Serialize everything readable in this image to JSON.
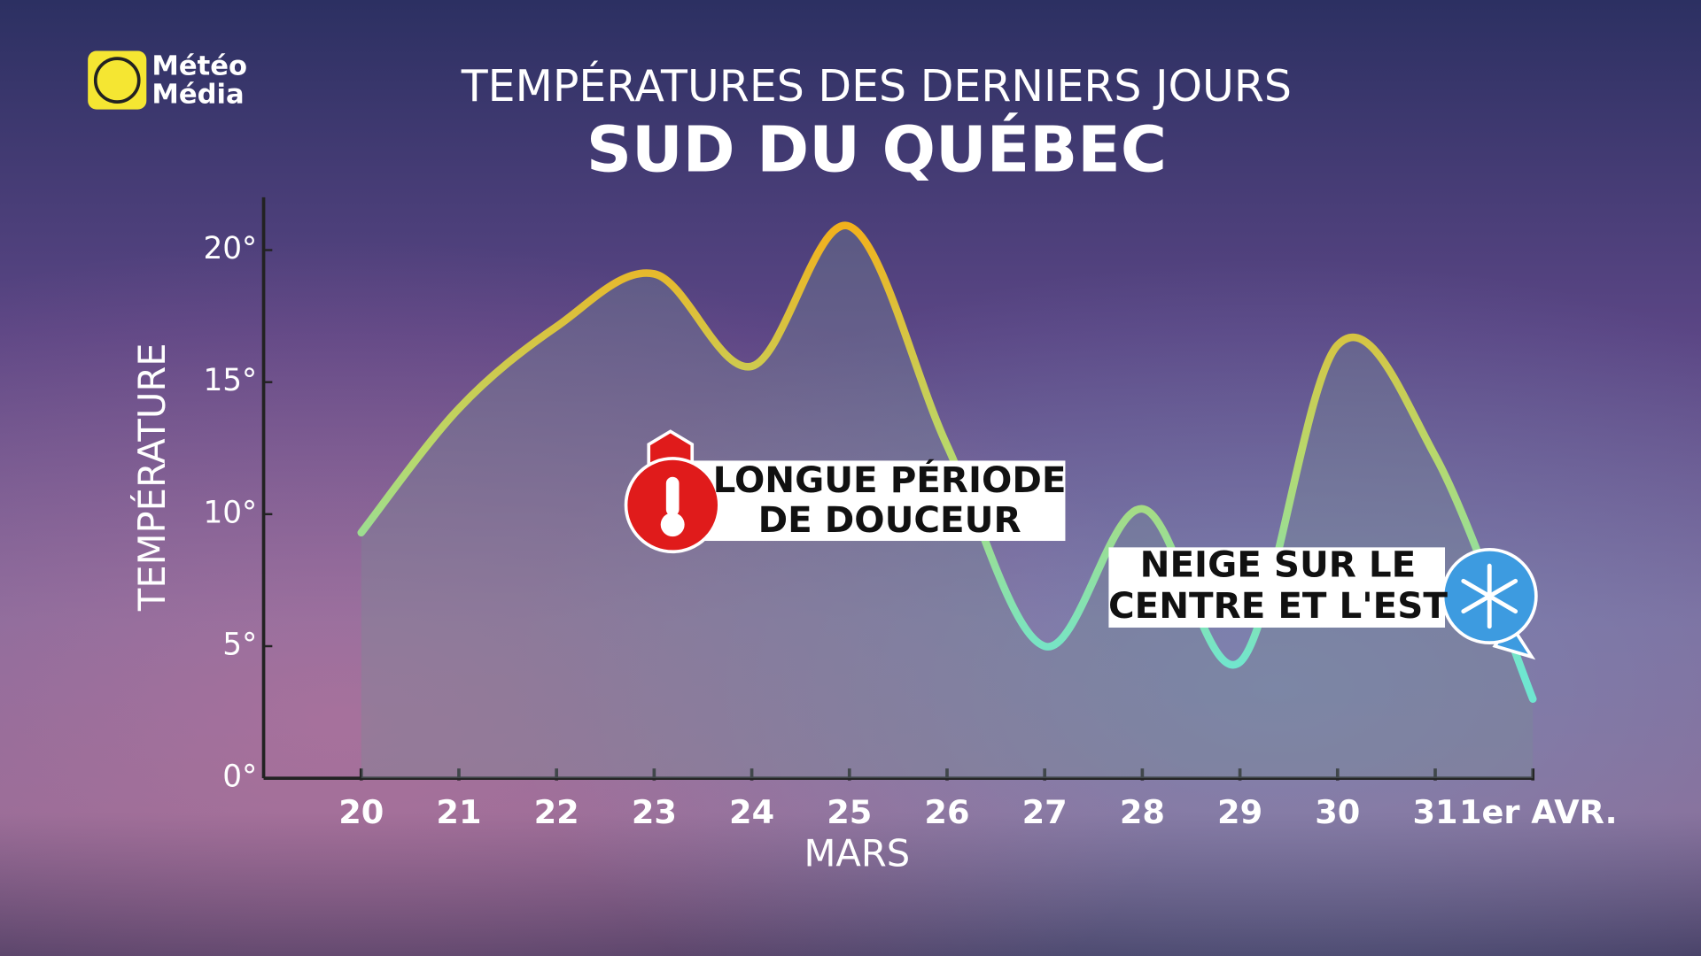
{
  "logo": {
    "line1": "Météo",
    "line2": "Média"
  },
  "chart_data": {
    "type": "line",
    "title": "TEMPÉRATURES DES DERNIERS JOURS",
    "subtitle": "SUD DU QUÉBEC",
    "x_label": "MARS",
    "y_label": "TEMPÉRATURE",
    "categories": [
      "20",
      "21",
      "22",
      "23",
      "24",
      "25",
      "26",
      "27",
      "28",
      "29",
      "30",
      "31",
      "1er AVR."
    ],
    "values": [
      9.3,
      14.0,
      17.1,
      19.1,
      15.6,
      20.9,
      12.6,
      5.0,
      10.2,
      4.4,
      16.4,
      12.2,
      3.0
    ],
    "gradient": [
      "#f2b11d",
      "#b9d86a",
      "#6fe6d0"
    ],
    "ylim": [
      0,
      22
    ],
    "yticks": [
      {
        "value": 0,
        "label": "0°"
      },
      {
        "value": 5,
        "label": "5°"
      },
      {
        "value": 10,
        "label": "10°"
      },
      {
        "value": 15,
        "label": "15°"
      },
      {
        "value": 20,
        "label": "20°"
      }
    ],
    "annotations": [
      {
        "lines": [
          "LONGUE PÉRIODE",
          "DE DOUCEUR"
        ]
      },
      {
        "lines": [
          "NEIGE SUR LE",
          "CENTRE ET L'EST"
        ]
      }
    ]
  }
}
